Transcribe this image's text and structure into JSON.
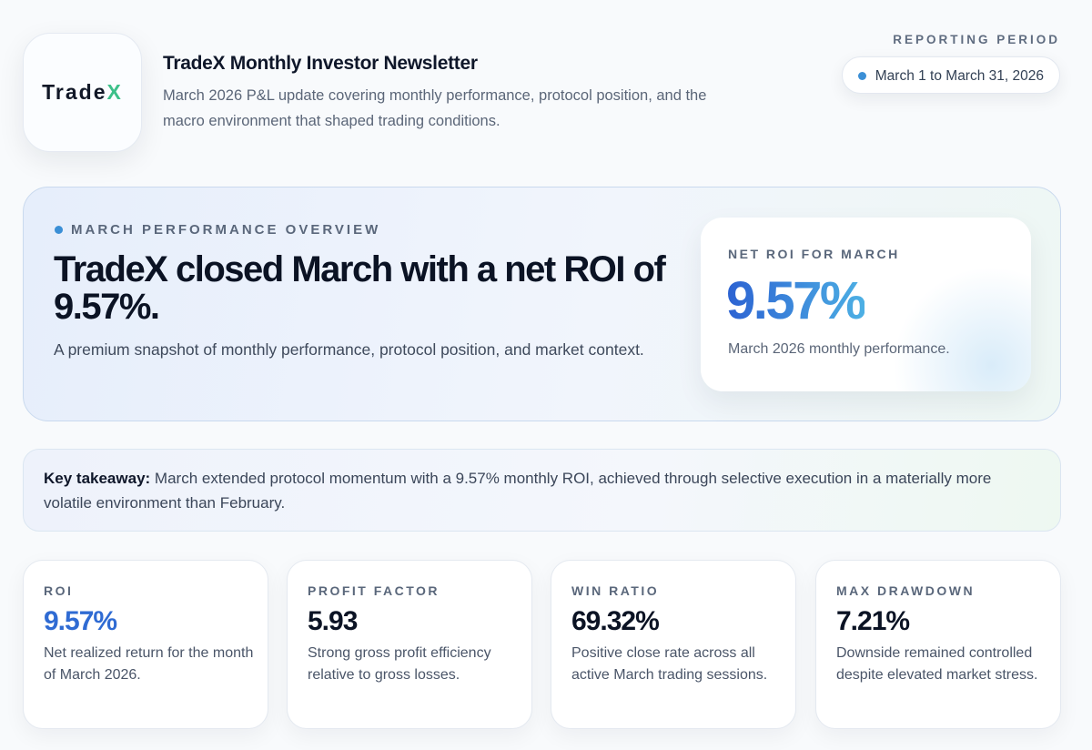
{
  "header": {
    "logo": {
      "text_main": "Trade",
      "text_accent": "X"
    },
    "title": "TradeX Monthly Investor Newsletter",
    "subtitle": "March 2026 P&L update covering monthly performance, protocol position, and the macro environment that shaped trading conditions.",
    "period_label": "REPORTING PERIOD",
    "period_value": "March 1 to March 31, 2026"
  },
  "hero": {
    "eyebrow": "MARCH PERFORMANCE OVERVIEW",
    "headline": "TradeX closed March with a net ROI of 9.57%.",
    "description": "A premium snapshot of monthly performance, protocol position, and market context.",
    "highlight": {
      "label": "NET ROI FOR MARCH",
      "value": "9.57%",
      "caption": "March 2026 monthly performance."
    }
  },
  "takeaway": {
    "label": "Key takeaway:",
    "text": "March extended protocol momentum with a 9.57% monthly ROI, achieved through selective execution in a materially more volatile environment than February."
  },
  "metrics": [
    {
      "label": "ROI",
      "value": "9.57%",
      "description": "Net realized return for the month of March 2026."
    },
    {
      "label": "PROFIT FACTOR",
      "value": "5.93",
      "description": "Strong gross profit efficiency relative to gross losses."
    },
    {
      "label": "WIN RATIO",
      "value": "69.32%",
      "description": "Positive close rate across all active March trading sessions."
    },
    {
      "label": "MAX DRAWDOWN",
      "value": "7.21%",
      "description": "Downside remained controlled despite elevated market stress."
    }
  ]
}
